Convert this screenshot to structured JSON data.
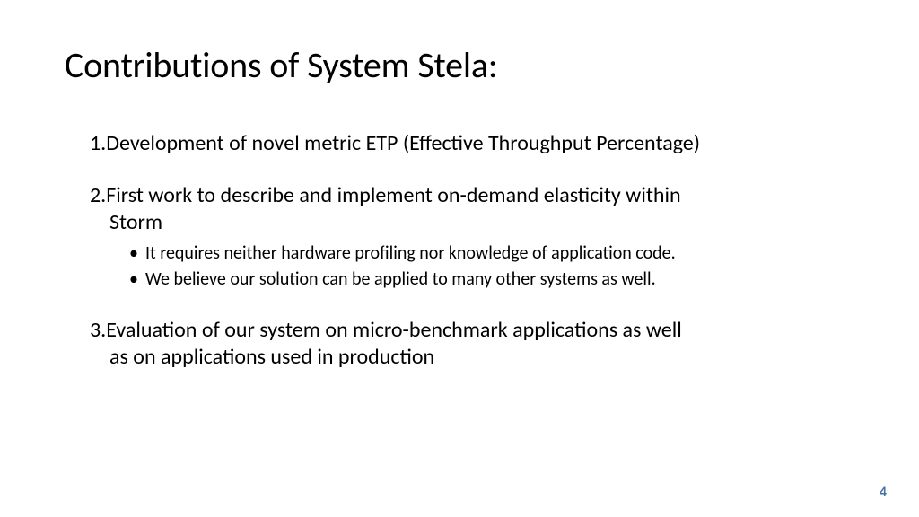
{
  "slide": {
    "title": "Contributions of System Stela:",
    "items": [
      {
        "number": "1.",
        "text": "Development of novel metric ETP (Effective Throughput Percentage)",
        "sub_bullets": []
      },
      {
        "number": "2.",
        "text": "First work to describe and implement on-demand elasticity within",
        "continuation": "Storm",
        "sub_bullets": [
          "It requires neither hardware profiling nor knowledge of application code.",
          "We believe our solution can be applied to many other systems as well."
        ]
      },
      {
        "number": "3.",
        "text": "Evaluation of our system on micro-benchmark applications as well",
        "continuation": "as on applications used in production",
        "sub_bullets": []
      }
    ],
    "page_number": "4"
  },
  "style": {
    "background_color": "#ffffff",
    "text_color": "#000000",
    "page_number_color": "#4472a8",
    "title_fontsize": 40,
    "body_fontsize": 24,
    "sub_bullet_fontsize": 20
  }
}
